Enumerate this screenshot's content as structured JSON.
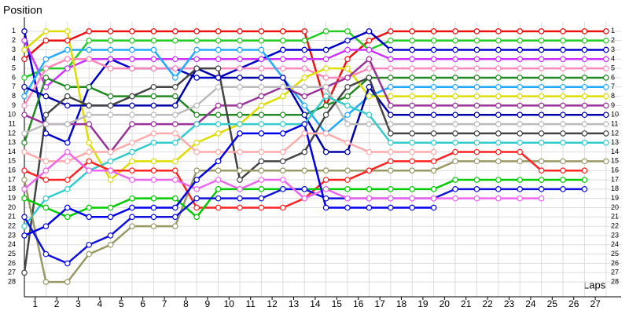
{
  "chart_data": {
    "type": "line",
    "y_label": "Position",
    "x_label": "Laps",
    "x": [
      0,
      1,
      2,
      3,
      4,
      5,
      6,
      7,
      8,
      9,
      10,
      11,
      12,
      13,
      14,
      15,
      16,
      17,
      18,
      19,
      20,
      21,
      22,
      23,
      24,
      25,
      26,
      27
    ],
    "xlim": [
      0,
      27.7
    ],
    "xticks": [
      {
        "value": 0.5,
        "label": "1"
      },
      {
        "value": 1.5,
        "label": "2"
      },
      {
        "value": 2.5,
        "label": "3"
      },
      {
        "value": 3.5,
        "label": "4"
      },
      {
        "value": 4.5,
        "label": "5"
      },
      {
        "value": 5.5,
        "label": "6"
      },
      {
        "value": 6.5,
        "label": "7"
      },
      {
        "value": 7.5,
        "label": "8"
      },
      {
        "value": 8.5,
        "label": "9"
      },
      {
        "value": 9.5,
        "label": "10"
      },
      {
        "value": 10.5,
        "label": "11"
      },
      {
        "value": 11.5,
        "label": "12"
      },
      {
        "value": 12.5,
        "label": "13"
      },
      {
        "value": 13.5,
        "label": "14"
      },
      {
        "value": 14.5,
        "label": "15"
      },
      {
        "value": 15.5,
        "label": "16"
      },
      {
        "value": 16.5,
        "label": "17"
      },
      {
        "value": 17.5,
        "label": "18"
      },
      {
        "value": 18.5,
        "label": "19"
      },
      {
        "value": 19.5,
        "label": "20"
      },
      {
        "value": 20.5,
        "label": "21"
      },
      {
        "value": 21.5,
        "label": "22"
      },
      {
        "value": 22.5,
        "label": "23"
      },
      {
        "value": 23.5,
        "label": "24"
      },
      {
        "value": 24.5,
        "label": "25"
      },
      {
        "value": 25.5,
        "label": "26"
      },
      {
        "value": 26.5,
        "label": "27"
      }
    ],
    "ylim": [
      0,
      29.6
    ],
    "yticks": [
      1,
      2,
      3,
      4,
      5,
      6,
      7,
      8,
      9,
      10,
      11,
      12,
      13,
      14,
      15,
      16,
      17,
      18,
      19,
      20,
      21,
      22,
      23,
      24,
      25,
      26,
      27,
      28
    ],
    "y2ticks": [
      1,
      2,
      3,
      4,
      5,
      6,
      7,
      8,
      9,
      10,
      11,
      12,
      13,
      14,
      15,
      16,
      17,
      18,
      19,
      20,
      21,
      22,
      23,
      24,
      25,
      26,
      27,
      28
    ],
    "grid": true,
    "series": [
      {
        "color": "#ee1111",
        "values": [
          4,
          2,
          2,
          1,
          1,
          1,
          1,
          1,
          1,
          1,
          1,
          1,
          1,
          1,
          9,
          4,
          2,
          1,
          1,
          1,
          1,
          1,
          1,
          1,
          1,
          1,
          1,
          1
        ]
      },
      {
        "color": "#22cc22",
        "values": [
          6,
          5,
          5,
          2,
          2,
          2,
          2,
          2,
          2,
          2,
          2,
          2,
          2,
          2,
          1,
          1,
          3,
          2,
          2,
          2,
          2,
          2,
          2,
          2,
          2,
          2,
          2,
          2
        ]
      },
      {
        "color": "#0000cc",
        "values": [
          1,
          12,
          13,
          7,
          4,
          5,
          5,
          5,
          6,
          6,
          5,
          4,
          3,
          3,
          3,
          2,
          1,
          3,
          3,
          3,
          3,
          3,
          3,
          3,
          3,
          3,
          3,
          3
        ]
      },
      {
        "color": "#cc33ff",
        "values": [
          2,
          7,
          5,
          4,
          4,
          4,
          4,
          4,
          4,
          4,
          4,
          4,
          4,
          4,
          4,
          3,
          3,
          4,
          4,
          4,
          4,
          4,
          4,
          4,
          4,
          4,
          4,
          4
        ]
      },
      {
        "color": "#ff88bb",
        "values": [
          9,
          5,
          4,
          4,
          5,
          5,
          5,
          5,
          5,
          5,
          5,
          5,
          5,
          5,
          6,
          6,
          5,
          5,
          5,
          5,
          5,
          5,
          5,
          5,
          5,
          5,
          5,
          5
        ]
      },
      {
        "color": "#228822",
        "values": [
          13,
          6,
          7,
          7,
          8,
          8,
          8,
          8,
          10,
          10,
          10,
          10,
          10,
          10,
          9,
          8,
          6,
          6,
          6,
          6,
          6,
          6,
          6,
          6,
          6,
          6,
          6,
          6
        ]
      },
      {
        "color": "#22aaff",
        "values": [
          8,
          4,
          3,
          3,
          3,
          3,
          3,
          6,
          3,
          3,
          3,
          3,
          6,
          9,
          12,
          10,
          8,
          7,
          7,
          7,
          7,
          7,
          7,
          7,
          7,
          7,
          7,
          7
        ]
      },
      {
        "color": "#dddd00",
        "values": [
          3,
          1,
          1,
          13,
          17,
          15,
          15,
          15,
          13,
          12,
          11,
          9,
          8,
          6,
          5,
          5,
          8,
          8,
          8,
          8,
          8,
          8,
          8,
          8,
          8,
          8,
          8,
          8
        ]
      },
      {
        "color": "#993399",
        "values": [
          10,
          11,
          11,
          11,
          14,
          11,
          11,
          11,
          11,
          9,
          9,
          8,
          7,
          8,
          7,
          6,
          4,
          9,
          9,
          9,
          9,
          9,
          9,
          9,
          9,
          9,
          9,
          9
        ]
      },
      {
        "color": "#0000aa",
        "values": [
          7,
          8,
          9,
          9,
          9,
          9,
          9,
          9,
          5,
          6,
          6,
          6,
          6,
          10,
          14,
          14,
          7,
          10,
          10,
          10,
          10,
          10,
          10,
          10,
          10,
          10,
          10,
          10
        ]
      },
      {
        "color": "#bbbbbb",
        "values": [
          12,
          11,
          11,
          10,
          10,
          10,
          10,
          10,
          9,
          7,
          7,
          7,
          7,
          7,
          7,
          11,
          11,
          11,
          11,
          11,
          11,
          11,
          11,
          11,
          11,
          11,
          11,
          11
        ]
      },
      {
        "color": "#444444",
        "values": [
          27,
          10,
          8,
          9,
          9,
          8,
          7,
          7,
          5,
          5,
          17,
          15,
          15,
          14,
          10,
          7,
          6,
          12,
          12,
          12,
          12,
          12,
          12,
          12,
          12,
          12,
          12,
          12
        ]
      },
      {
        "color": "#33cccc",
        "values": [
          22,
          19,
          18,
          16,
          15,
          14,
          13,
          13,
          11,
          11,
          11,
          11,
          11,
          11,
          8,
          9,
          10,
          13,
          13,
          13,
          13,
          13,
          13,
          13,
          13,
          13,
          13,
          13
        ]
      },
      {
        "color": "#ffaaaa",
        "values": [
          14,
          15,
          15,
          14,
          14,
          13,
          12,
          12,
          14,
          14,
          14,
          14,
          14,
          12,
          12,
          13,
          14,
          14,
          14,
          14,
          null,
          null,
          null,
          null,
          null,
          null,
          null,
          null
        ]
      },
      {
        "color": "#999966",
        "values": [
          17,
          28,
          28,
          25,
          24,
          22,
          22,
          22,
          16,
          16,
          16,
          16,
          16,
          16,
          16,
          16,
          16,
          16,
          16,
          16,
          15,
          15,
          15,
          15,
          15,
          15,
          15,
          15
        ]
      },
      {
        "color": "#ff2222",
        "values": [
          16,
          17,
          17,
          15,
          16,
          16,
          16,
          16,
          20,
          20,
          20,
          20,
          20,
          19,
          17,
          17,
          16,
          15,
          15,
          15,
          14,
          14,
          14,
          14,
          16,
          16,
          16,
          null
        ]
      },
      {
        "color": "#00cc00",
        "values": [
          19,
          20,
          21,
          20,
          20,
          19,
          19,
          19,
          21,
          18,
          18,
          18,
          18,
          18,
          18,
          18,
          18,
          18,
          18,
          18,
          17,
          17,
          17,
          17,
          17,
          17,
          17,
          null
        ]
      },
      {
        "color": "#1111dd",
        "values": [
          21,
          25,
          26,
          24,
          23,
          21,
          21,
          21,
          19,
          19,
          19,
          19,
          18,
          18,
          19,
          19,
          19,
          19,
          19,
          19,
          18,
          18,
          18,
          18,
          18,
          18,
          18,
          null
        ]
      },
      {
        "color": "#ee66ee",
        "values": [
          18,
          16,
          14,
          16,
          16,
          17,
          17,
          17,
          18,
          17,
          18,
          17,
          17,
          19,
          18,
          19,
          19,
          19,
          19,
          19,
          19,
          19,
          19,
          19,
          19,
          null,
          null,
          null
        ]
      },
      {
        "color": "#0000ee",
        "values": [
          23,
          22,
          20,
          21,
          21,
          20,
          20,
          20,
          17,
          15,
          12,
          12,
          12,
          11,
          20,
          20,
          20,
          20,
          20,
          20,
          null,
          null,
          null,
          null,
          null,
          null,
          null,
          null
        ]
      }
    ]
  }
}
